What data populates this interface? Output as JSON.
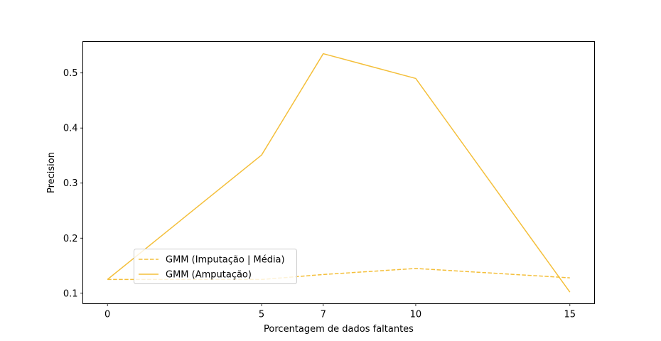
{
  "chart_data": {
    "type": "line",
    "title": "",
    "xlabel": "Porcentagem de dados faltantes",
    "ylabel": "Precision",
    "x": [
      0,
      5,
      7,
      10,
      15
    ],
    "xlim": [
      -0.8,
      15.8
    ],
    "ylim": [
      0.081,
      0.557
    ],
    "xticks": [
      0,
      5,
      7,
      10,
      15
    ],
    "yticks": [
      0.1,
      0.2,
      0.3,
      0.4,
      0.5
    ],
    "ytick_labels": [
      "0.1",
      "0.2",
      "0.3",
      "0.4",
      "0.5"
    ],
    "grid": false,
    "legend_position": "lower-left",
    "series": [
      {
        "name": "GMM (Imputação | Média)",
        "values": [
          0.125,
          0.125,
          0.134,
          0.145,
          0.128
        ],
        "color": "#f4bf3a",
        "linestyle": "dashed"
      },
      {
        "name": "GMM (Amputação)",
        "values": [
          0.125,
          0.351,
          0.535,
          0.49,
          0.102
        ],
        "color": "#f4bf3a",
        "linestyle": "solid"
      }
    ]
  }
}
